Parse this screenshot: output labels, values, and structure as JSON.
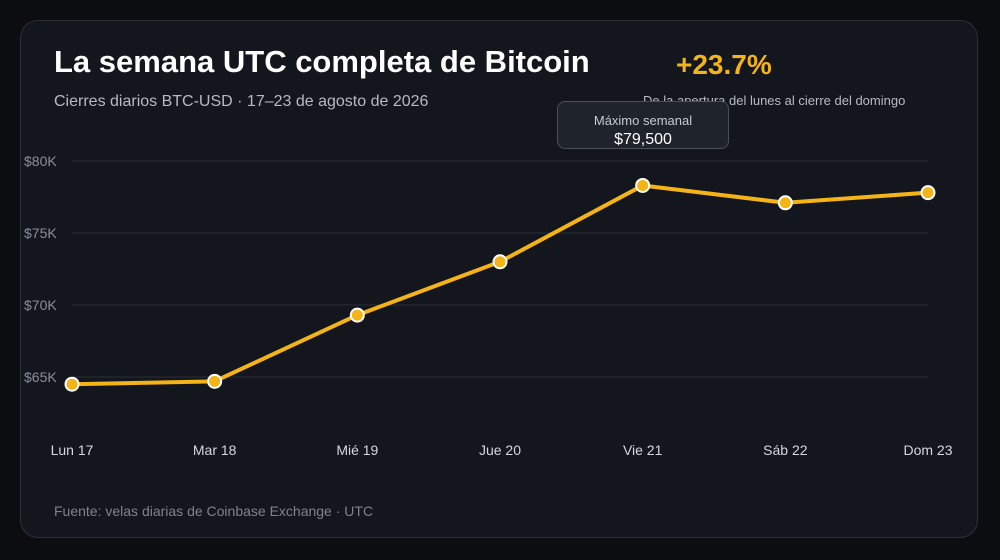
{
  "header": {
    "title": "La semana UTC completa de Bitcoin",
    "subtitle": "Cierres diarios BTC-USD · 17–23 de agosto de 2026"
  },
  "summary": {
    "change": "+23.7%",
    "note": "De la apertura del lunes al cierre del domingo"
  },
  "tooltip": {
    "label": "Máximo semanal",
    "value": "$79,500"
  },
  "footer": {
    "source": "Fuente: velas diarias de Coinbase Exchange · UTC"
  },
  "colors": {
    "accent": "#f4b316",
    "background": "#13161c",
    "grid": "#2a2e36"
  },
  "chart_data": {
    "type": "line",
    "categories": [
      "Lun 17",
      "Mar 18",
      "Mié 19",
      "Jue 20",
      "Vie 21",
      "Sáb 22",
      "Dom 23"
    ],
    "series": [
      {
        "values": [
          64500,
          64700,
          69300,
          73000,
          78300,
          77100,
          77800
        ]
      }
    ],
    "yticks": [
      65000,
      70000,
      75000,
      80000
    ],
    "ytick_labels": [
      "$65K",
      "$70K",
      "$75K",
      "$80K"
    ],
    "ylim": [
      60000,
      80000
    ],
    "grid": true,
    "legend": "none"
  }
}
